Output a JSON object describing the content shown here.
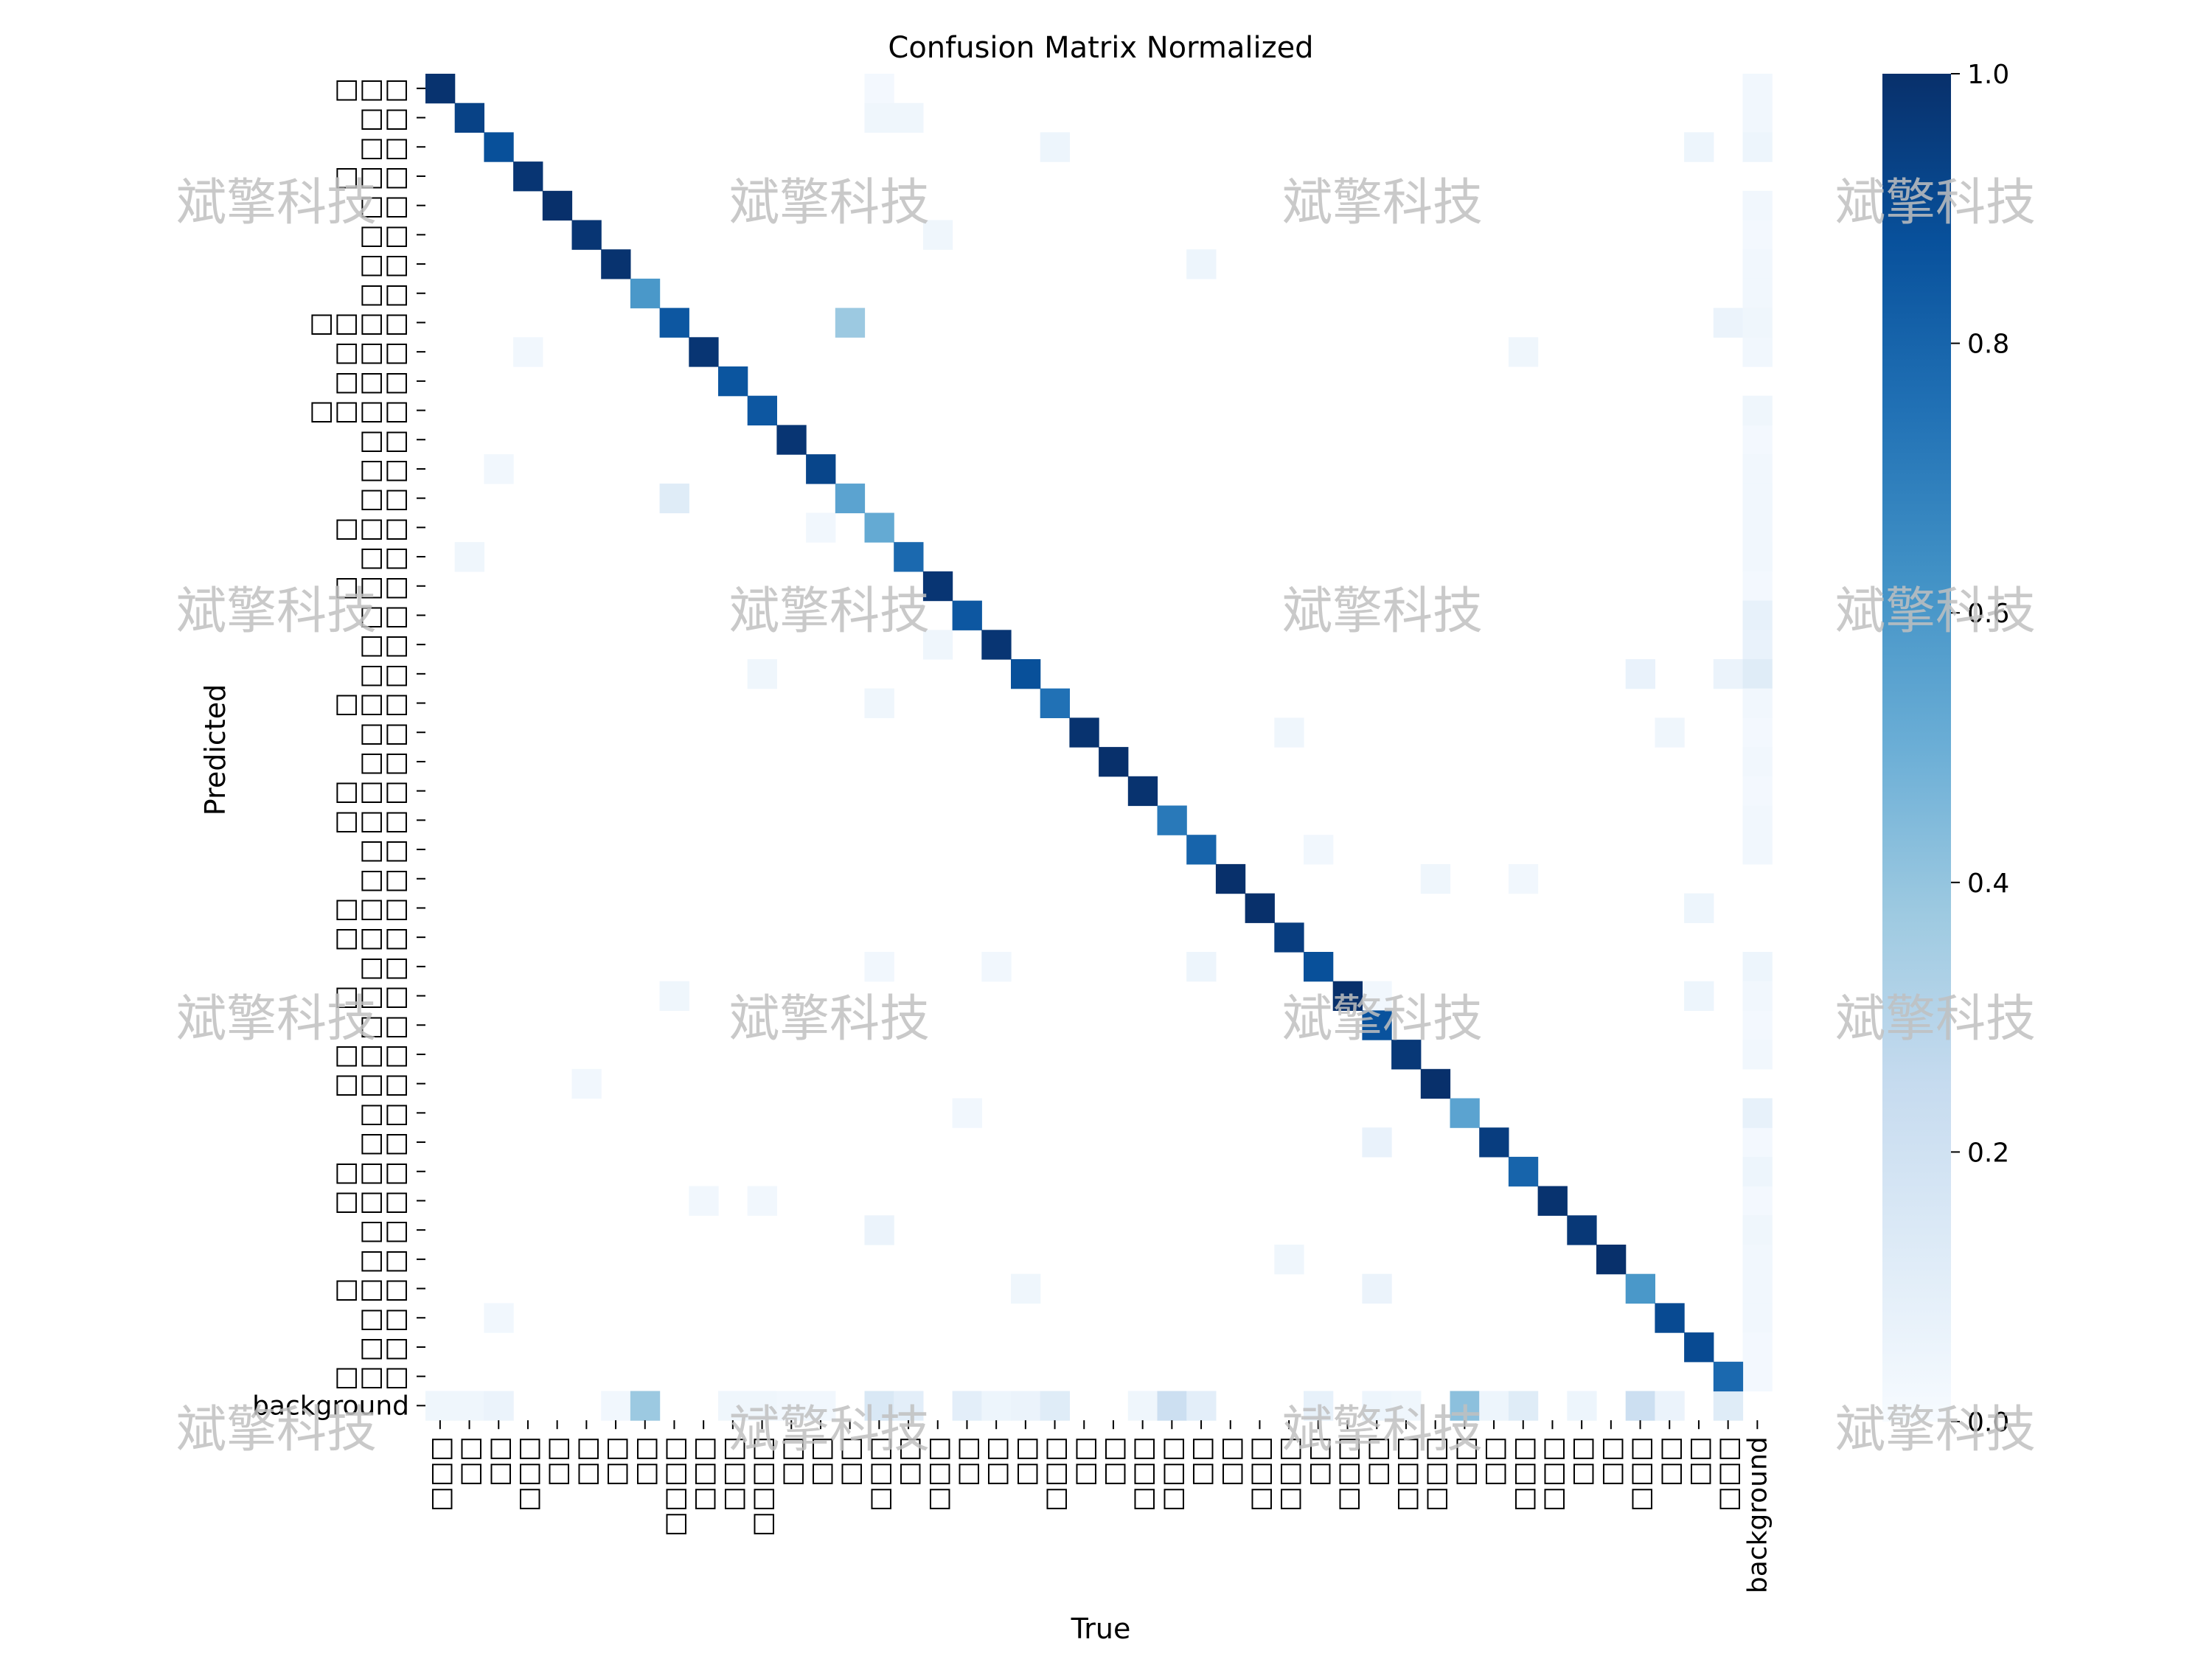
{
  "chart_data": {
    "type": "heatmap",
    "title": "Confusion Matrix Normalized",
    "xlabel": "True",
    "ylabel": "Predicted",
    "x_tick_labels": [
      "□□□",
      "□□",
      "□□",
      "□□□",
      "□□",
      "□□",
      "□□",
      "□□",
      "□□□□",
      "□□□",
      "□□□",
      "□□□□",
      "□□",
      "□□",
      "□□",
      "□□□",
      "□□",
      "□□□",
      "□□",
      "□□",
      "□□",
      "□□□",
      "□□",
      "□□",
      "□□□",
      "□□□",
      "□□",
      "□□",
      "□□□",
      "□□□",
      "□□",
      "□□□",
      "□□",
      "□□□",
      "□□□",
      "□□",
      "□□",
      "□□□",
      "□□□",
      "□□",
      "□□",
      "□□□",
      "□□",
      "□□",
      "□□□",
      "background"
    ],
    "y_tick_labels": [
      "□□□",
      "□□",
      "□□",
      "□□□",
      "□□",
      "□□",
      "□□",
      "□□",
      "□□□□",
      "□□□",
      "□□□",
      "□□□□",
      "□□",
      "□□",
      "□□",
      "□□□",
      "□□",
      "□□□",
      "□□",
      "□□",
      "□□",
      "□□□",
      "□□",
      "□□",
      "□□□",
      "□□□",
      "□□",
      "□□",
      "□□□",
      "□□□",
      "□□",
      "□□□",
      "□□",
      "□□□",
      "□□□",
      "□□",
      "□□",
      "□□□",
      "□□□",
      "□□",
      "□□",
      "□□□",
      "□□",
      "□□",
      "□□□",
      "background"
    ],
    "value_range": [
      0.0,
      1.0
    ],
    "colormap": "Blues",
    "colorbar_ticks": [
      "0.0",
      "0.2",
      "0.4",
      "0.6",
      "0.8",
      "1.0"
    ],
    "diagonal": [
      0.99,
      0.93,
      0.88,
      0.98,
      1.0,
      0.98,
      0.99,
      0.6,
      0.85,
      0.98,
      0.86,
      0.85,
      0.98,
      0.92,
      0.55,
      0.52,
      0.78,
      0.98,
      0.85,
      0.98,
      0.88,
      0.75,
      0.99,
      1.0,
      0.99,
      0.72,
      0.8,
      1.0,
      1.0,
      0.95,
      0.88,
      1.0,
      0.87,
      0.97,
      1.0,
      0.55,
      0.95,
      0.8,
      0.99,
      0.97,
      1.0,
      0.6,
      0.9,
      0.9,
      0.78,
      0.0
    ],
    "off_diagonal": [
      {
        "row": 0,
        "col": 15,
        "value": 0.02
      },
      {
        "row": 0,
        "col": 45,
        "value": 0.03
      },
      {
        "row": 1,
        "col": 15,
        "value": 0.04
      },
      {
        "row": 1,
        "col": 16,
        "value": 0.04
      },
      {
        "row": 1,
        "col": 45,
        "value": 0.03
      },
      {
        "row": 2,
        "col": 21,
        "value": 0.05
      },
      {
        "row": 2,
        "col": 43,
        "value": 0.05
      },
      {
        "row": 2,
        "col": 45,
        "value": 0.05
      },
      {
        "row": 4,
        "col": 45,
        "value": 0.03
      },
      {
        "row": 5,
        "col": 17,
        "value": 0.04
      },
      {
        "row": 6,
        "col": 26,
        "value": 0.05
      },
      {
        "row": 6,
        "col": 45,
        "value": 0.03
      },
      {
        "row": 7,
        "col": 45,
        "value": 0.03
      },
      {
        "row": 8,
        "col": 14,
        "value": 0.38
      },
      {
        "row": 8,
        "col": 44,
        "value": 0.06
      },
      {
        "row": 8,
        "col": 45,
        "value": 0.04
      },
      {
        "row": 9,
        "col": 3,
        "value": 0.03
      },
      {
        "row": 9,
        "col": 37,
        "value": 0.04
      },
      {
        "row": 9,
        "col": 45,
        "value": 0.03
      },
      {
        "row": 11,
        "col": 45,
        "value": 0.04
      },
      {
        "row": 13,
        "col": 2,
        "value": 0.03
      },
      {
        "row": 13,
        "col": 45,
        "value": 0.03
      },
      {
        "row": 14,
        "col": 8,
        "value": 0.12
      },
      {
        "row": 14,
        "col": 45,
        "value": 0.03
      },
      {
        "row": 15,
        "col": 13,
        "value": 0.03
      },
      {
        "row": 15,
        "col": 45,
        "value": 0.03
      },
      {
        "row": 16,
        "col": 1,
        "value": 0.04
      },
      {
        "row": 16,
        "col": 45,
        "value": 0.03
      },
      {
        "row": 18,
        "col": 45,
        "value": 0.08
      },
      {
        "row": 19,
        "col": 17,
        "value": 0.04
      },
      {
        "row": 19,
        "col": 45,
        "value": 0.07
      },
      {
        "row": 20,
        "col": 11,
        "value": 0.04
      },
      {
        "row": 20,
        "col": 41,
        "value": 0.07
      },
      {
        "row": 20,
        "col": 44,
        "value": 0.06
      },
      {
        "row": 20,
        "col": 45,
        "value": 0.12
      },
      {
        "row": 21,
        "col": 15,
        "value": 0.04
      },
      {
        "row": 21,
        "col": 45,
        "value": 0.03
      },
      {
        "row": 22,
        "col": 29,
        "value": 0.04
      },
      {
        "row": 22,
        "col": 42,
        "value": 0.04
      },
      {
        "row": 23,
        "col": 45,
        "value": 0.03
      },
      {
        "row": 25,
        "col": 45,
        "value": 0.03
      },
      {
        "row": 26,
        "col": 30,
        "value": 0.03
      },
      {
        "row": 26,
        "col": 45,
        "value": 0.03
      },
      {
        "row": 27,
        "col": 34,
        "value": 0.04
      },
      {
        "row": 27,
        "col": 37,
        "value": 0.03
      },
      {
        "row": 28,
        "col": 43,
        "value": 0.05
      },
      {
        "row": 30,
        "col": 15,
        "value": 0.03
      },
      {
        "row": 30,
        "col": 19,
        "value": 0.03
      },
      {
        "row": 30,
        "col": 26,
        "value": 0.05
      },
      {
        "row": 30,
        "col": 45,
        "value": 0.05
      },
      {
        "row": 31,
        "col": 8,
        "value": 0.04
      },
      {
        "row": 31,
        "col": 32,
        "value": 0.03
      },
      {
        "row": 31,
        "col": 43,
        "value": 0.05
      },
      {
        "row": 31,
        "col": 45,
        "value": 0.03
      },
      {
        "row": 33,
        "col": 45,
        "value": 0.03
      },
      {
        "row": 34,
        "col": 5,
        "value": 0.03
      },
      {
        "row": 35,
        "col": 18,
        "value": 0.03
      },
      {
        "row": 35,
        "col": 45,
        "value": 0.08
      },
      {
        "row": 36,
        "col": 32,
        "value": 0.07
      },
      {
        "row": 37,
        "col": 45,
        "value": 0.05
      },
      {
        "row": 38,
        "col": 9,
        "value": 0.03
      },
      {
        "row": 38,
        "col": 11,
        "value": 0.03
      },
      {
        "row": 39,
        "col": 15,
        "value": 0.06
      },
      {
        "row": 39,
        "col": 45,
        "value": 0.04
      },
      {
        "row": 40,
        "col": 29,
        "value": 0.04
      },
      {
        "row": 40,
        "col": 45,
        "value": 0.03
      },
      {
        "row": 41,
        "col": 20,
        "value": 0.04
      },
      {
        "row": 41,
        "col": 32,
        "value": 0.06
      },
      {
        "row": 41,
        "col": 45,
        "value": 0.03
      },
      {
        "row": 42,
        "col": 2,
        "value": 0.03
      },
      {
        "row": 42,
        "col": 45,
        "value": 0.03
      },
      {
        "row": 45,
        "col": 0,
        "value": 0.04
      },
      {
        "row": 45,
        "col": 1,
        "value": 0.04
      },
      {
        "row": 45,
        "col": 2,
        "value": 0.06
      },
      {
        "row": 45,
        "col": 6,
        "value": 0.03
      },
      {
        "row": 45,
        "col": 7,
        "value": 0.38
      },
      {
        "row": 45,
        "col": 10,
        "value": 0.04
      },
      {
        "row": 45,
        "col": 11,
        "value": 0.04
      },
      {
        "row": 45,
        "col": 12,
        "value": 0.03
      },
      {
        "row": 45,
        "col": 13,
        "value": 0.03
      },
      {
        "row": 45,
        "col": 15,
        "value": 0.15
      },
      {
        "row": 45,
        "col": 16,
        "value": 0.1
      },
      {
        "row": 45,
        "col": 18,
        "value": 0.1
      },
      {
        "row": 45,
        "col": 19,
        "value": 0.05
      },
      {
        "row": 45,
        "col": 20,
        "value": 0.06
      },
      {
        "row": 45,
        "col": 21,
        "value": 0.12
      },
      {
        "row": 45,
        "col": 24,
        "value": 0.04
      },
      {
        "row": 45,
        "col": 25,
        "value": 0.22
      },
      {
        "row": 45,
        "col": 26,
        "value": 0.1
      },
      {
        "row": 45,
        "col": 30,
        "value": 0.08
      },
      {
        "row": 45,
        "col": 32,
        "value": 0.05
      },
      {
        "row": 45,
        "col": 33,
        "value": 0.04
      },
      {
        "row": 45,
        "col": 35,
        "value": 0.42
      },
      {
        "row": 45,
        "col": 36,
        "value": 0.05
      },
      {
        "row": 45,
        "col": 37,
        "value": 0.12
      },
      {
        "row": 45,
        "col": 39,
        "value": 0.05
      },
      {
        "row": 45,
        "col": 41,
        "value": 0.22
      },
      {
        "row": 45,
        "col": 42,
        "value": 0.06
      },
      {
        "row": 45,
        "col": 44,
        "value": 0.12
      }
    ],
    "background_column_faint": [
      5,
      9,
      12,
      14,
      16,
      17,
      22,
      24,
      32,
      36,
      38,
      40,
      43,
      44
    ]
  },
  "watermark_text": "斌擎科技"
}
